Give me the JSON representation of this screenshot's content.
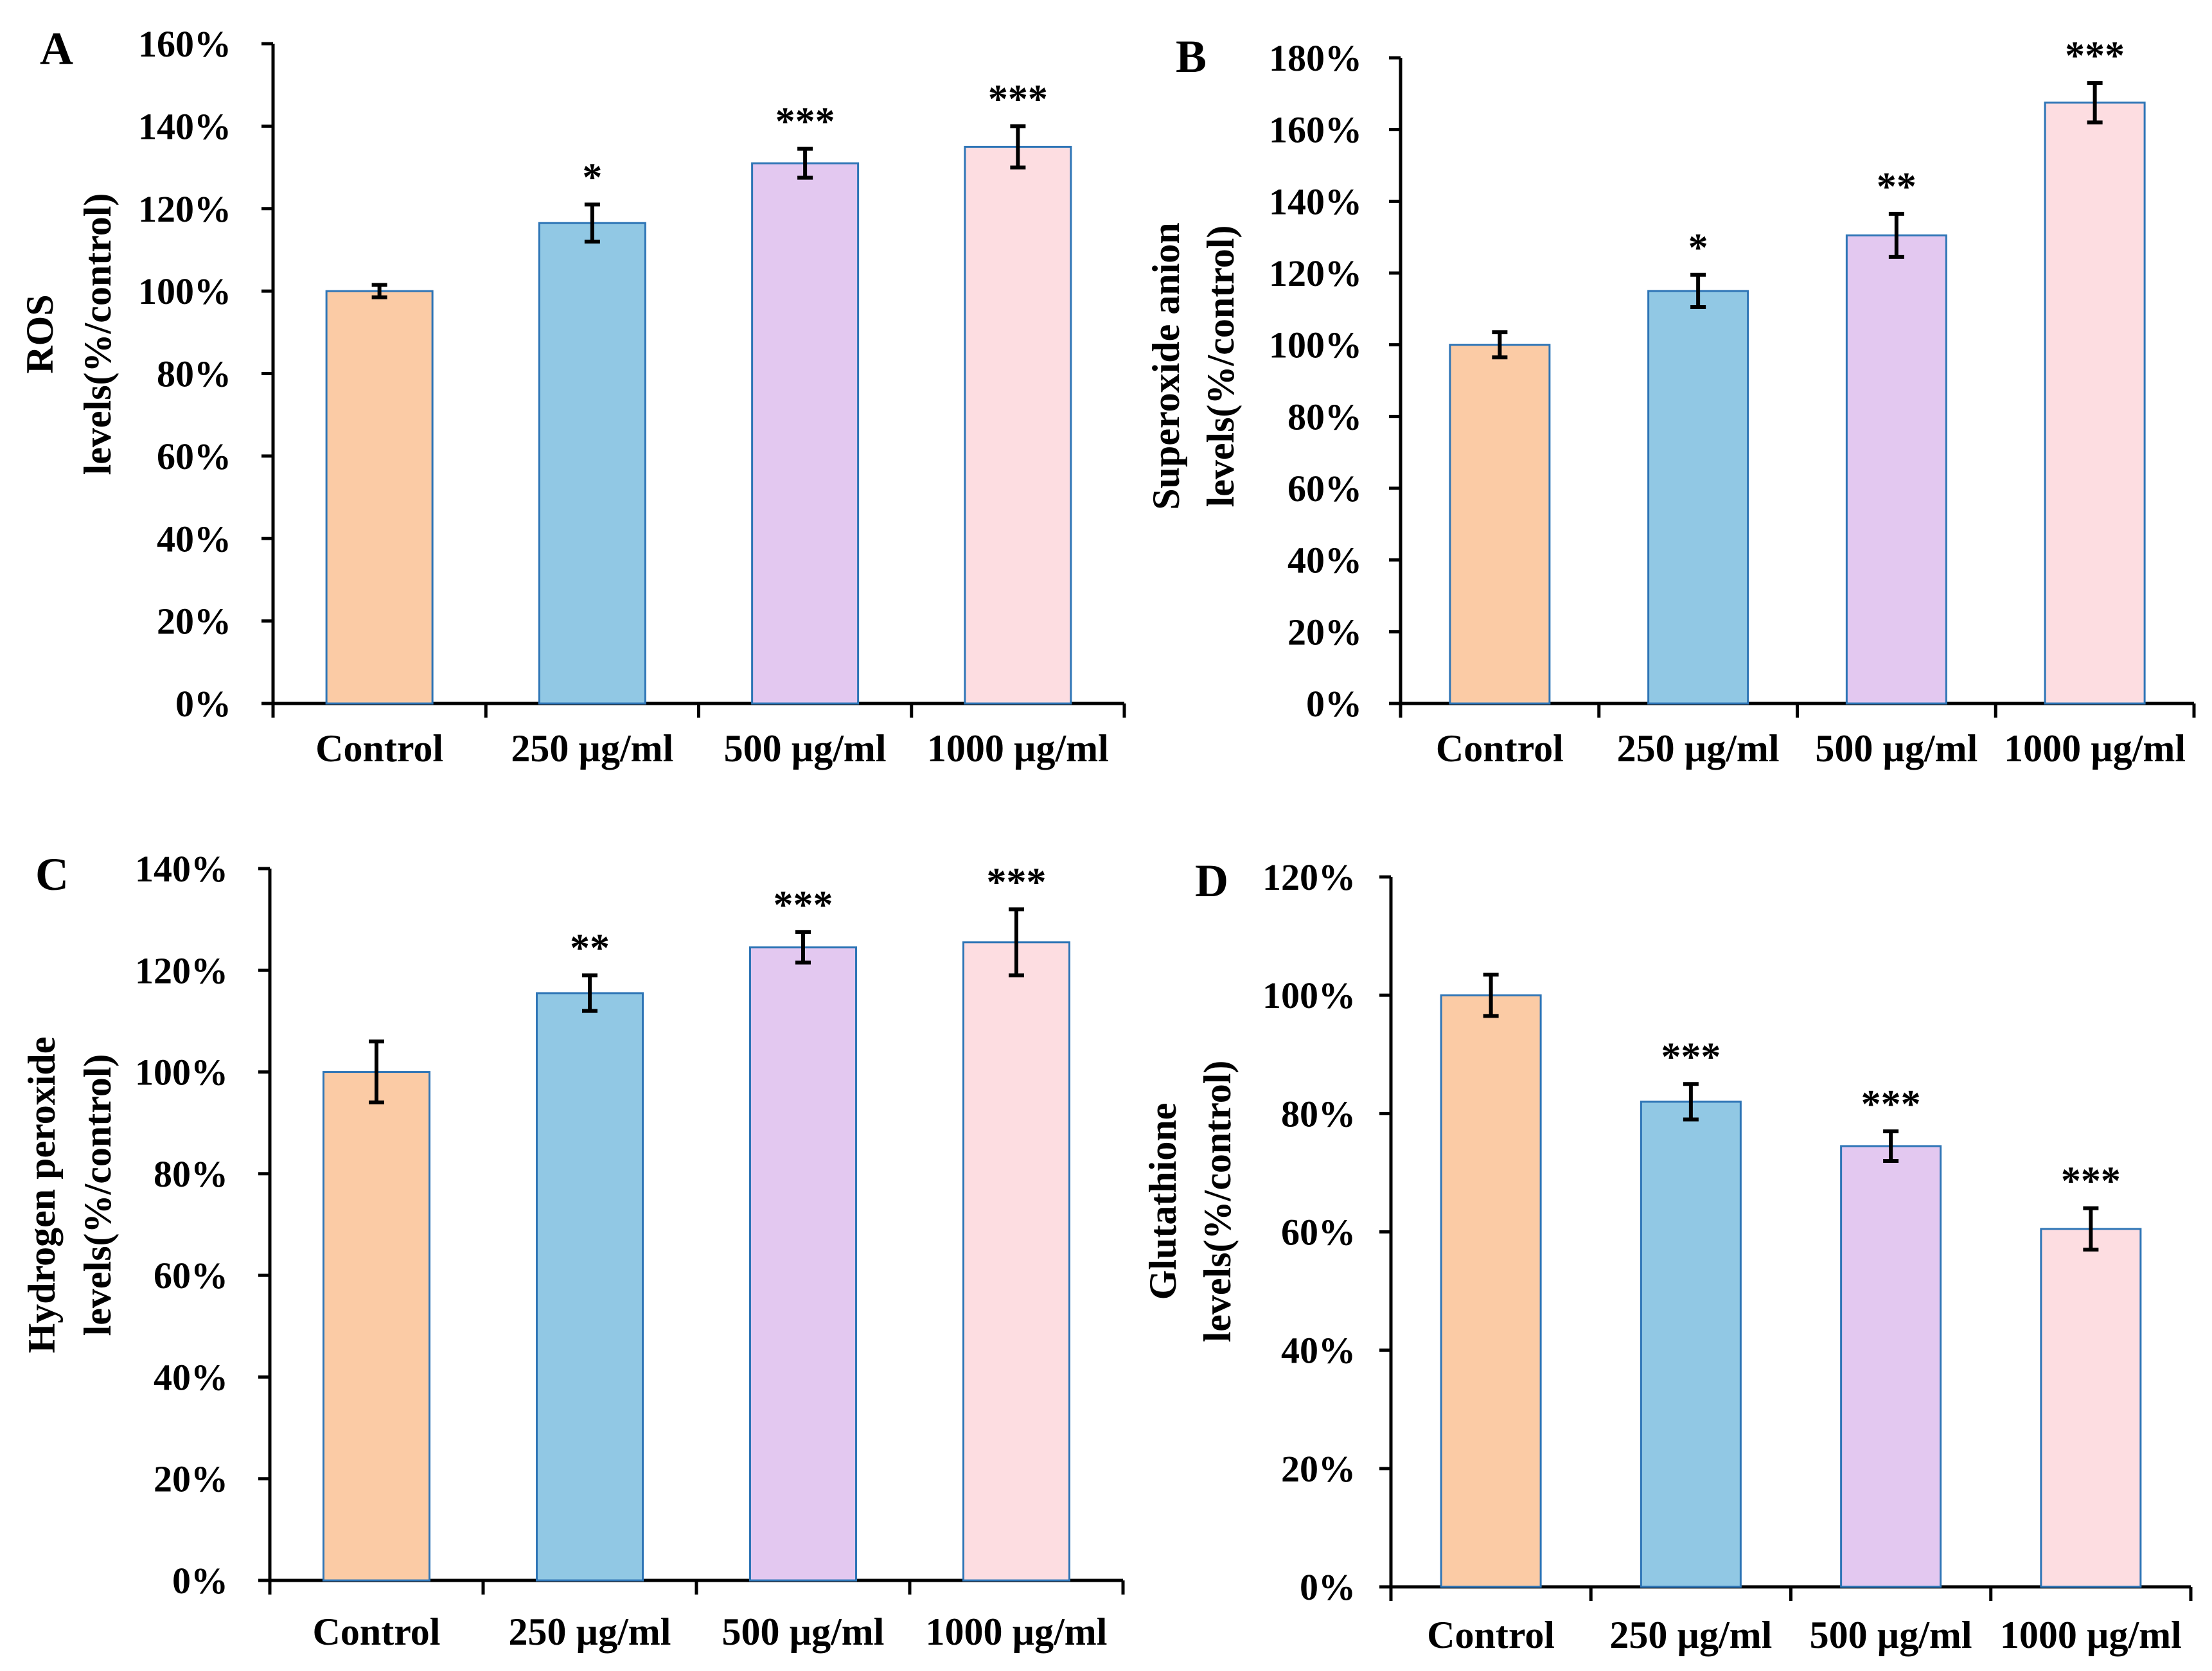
{
  "colors": {
    "bar_fills": [
      "#FBCBA5",
      "#91C8E4",
      "#E3C8F0",
      "#FDDDE1"
    ],
    "bar_stroke": "#2E75B6",
    "axis": "#000000"
  },
  "chart_data": [
    {
      "panel": "A",
      "type": "bar",
      "categories": [
        "Control",
        "250 µg/ml",
        "500 µg/ml",
        "1000 µg/ml"
      ],
      "values": [
        100,
        116.5,
        131,
        135
      ],
      "errors": [
        1.5,
        4.5,
        3.5,
        5
      ],
      "significance": [
        "",
        "*",
        "***",
        "***"
      ],
      "ylabel_lines": [
        "ROS",
        "levels(%/control)"
      ],
      "ylim": [
        0,
        160
      ],
      "ytick_step": 20,
      "yticks": [
        "0%",
        "20%",
        "40%",
        "60%",
        "80%",
        "100%",
        "120%",
        "140%",
        "160%"
      ]
    },
    {
      "panel": "B",
      "type": "bar",
      "categories": [
        "Control",
        "250 µg/ml",
        "500 µg/ml",
        "1000 µg/ml"
      ],
      "values": [
        100,
        115,
        130.5,
        167.5
      ],
      "errors": [
        3.5,
        4.5,
        6,
        5.5
      ],
      "significance": [
        "",
        "*",
        "**",
        "***"
      ],
      "ylabel_lines": [
        "Superoxide anion",
        "levels(%/control)"
      ],
      "ylim": [
        0,
        180
      ],
      "ytick_step": 20,
      "yticks": [
        "0%",
        "20%",
        "40%",
        "60%",
        "80%",
        "100%",
        "120%",
        "140%",
        "160%",
        "180%"
      ]
    },
    {
      "panel": "C",
      "type": "bar",
      "categories": [
        "Control",
        "250 µg/ml",
        "500 µg/ml",
        "1000 µg/ml"
      ],
      "values": [
        100,
        115.5,
        124.5,
        125.5
      ],
      "errors": [
        6,
        3.5,
        3,
        6.5
      ],
      "significance": [
        "",
        "**",
        "***",
        "***"
      ],
      "ylabel_lines": [
        "Hydrogen peroxide",
        "levels(%/control)"
      ],
      "ylim": [
        0,
        140
      ],
      "ytick_step": 20,
      "yticks": [
        "0%",
        "20%",
        "40%",
        "60%",
        "80%",
        "100%",
        "120%",
        "140%"
      ]
    },
    {
      "panel": "D",
      "type": "bar",
      "categories": [
        "Control",
        "250 µg/ml",
        "500 µg/ml",
        "1000 µg/ml"
      ],
      "values": [
        100,
        82,
        74.5,
        60.5
      ],
      "errors": [
        3.5,
        3,
        2.5,
        3.5
      ],
      "significance": [
        "",
        "***",
        "***",
        "***"
      ],
      "ylabel_lines": [
        "Glutathione",
        "levels(%/control)"
      ],
      "ylim": [
        0,
        120
      ],
      "ytick_step": 20,
      "yticks": [
        "0%",
        "20%",
        "40%",
        "60%",
        "80%",
        "100%",
        "120%"
      ]
    }
  ]
}
